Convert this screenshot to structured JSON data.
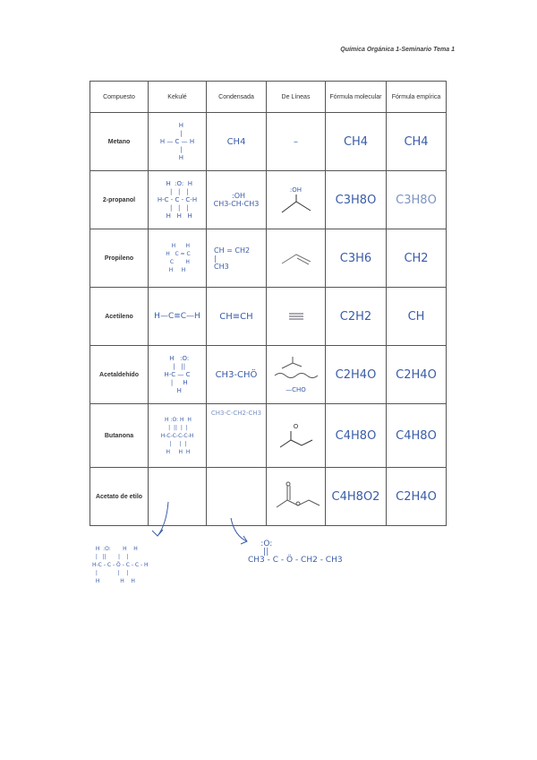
{
  "header": {
    "text": "Química Orgánica 1-Seminario Tema 1"
  },
  "table": {
    "columns": [
      "Compuesto",
      "Kekulé",
      "Condensada",
      "De Líneas",
      "Fórmula molecular",
      "Fórmula empírica"
    ],
    "rows": [
      {
        "name": "Metano",
        "kekule": "    H\n    |\nH — C — H\n    |\n    H",
        "condensed": "CH4",
        "lines": "–",
        "molecular": "CH4",
        "empirical": "CH4"
      },
      {
        "name": "2-propanol",
        "kekule": "  H  :O:  H\n  |   |   |\nH-C - C - C-H\n  |   |   |\n  H   H   H",
        "condensed": "  :OH\nCH3-CH-CH3",
        "lines": ":OH",
        "molecular": "C3H8O",
        "empirical": "C3H8O"
      },
      {
        "name": "Propileno",
        "kekule": "    H      H\n H   C = C\n   C       H\nH     H",
        "condensed": "CH = CH2\n|\nCH3",
        "lines": "",
        "molecular": "C3H6",
        "empirical": "CH2"
      },
      {
        "name": "Acetileno",
        "kekule": "H—C≡C—H",
        "condensed": "CH≡CH",
        "lines": "",
        "molecular": "C2H2",
        "empirical": "CH"
      },
      {
        "name": "Acetaldehído",
        "kekule": "  H   :O:\n  |   ||\nH-C — C\n  |     H\n  H",
        "condensed": "CH3-CHÖ",
        "lines": "—CHO",
        "molecular": "C2H4O",
        "empirical": "C2H4O"
      },
      {
        "name": "Butanona",
        "kekule": " H :O: H  H\n |  ||  |  |\nH-C-C-C-C-H\n |     |  |\n H     H  H",
        "condensed": "CH3-C-CH2-CH3",
        "lines": "O",
        "molecular": "C4H8O",
        "empirical": "C4H8O"
      },
      {
        "name": "Acetato de etilo",
        "kekule": "",
        "condensed": "",
        "lines": "",
        "molecular": "C4H8O2",
        "empirical": "C2H4O"
      }
    ]
  },
  "below": {
    "kekule": "  H  :O:       H    H\n  |   ||       |    |\nH-C - C - Ö - C - C - H\n  |            |    |\n  H            H    H",
    "condensed": "     :O:\n      ||\nCH3 - C - Ö - CH2 - CH3"
  }
}
